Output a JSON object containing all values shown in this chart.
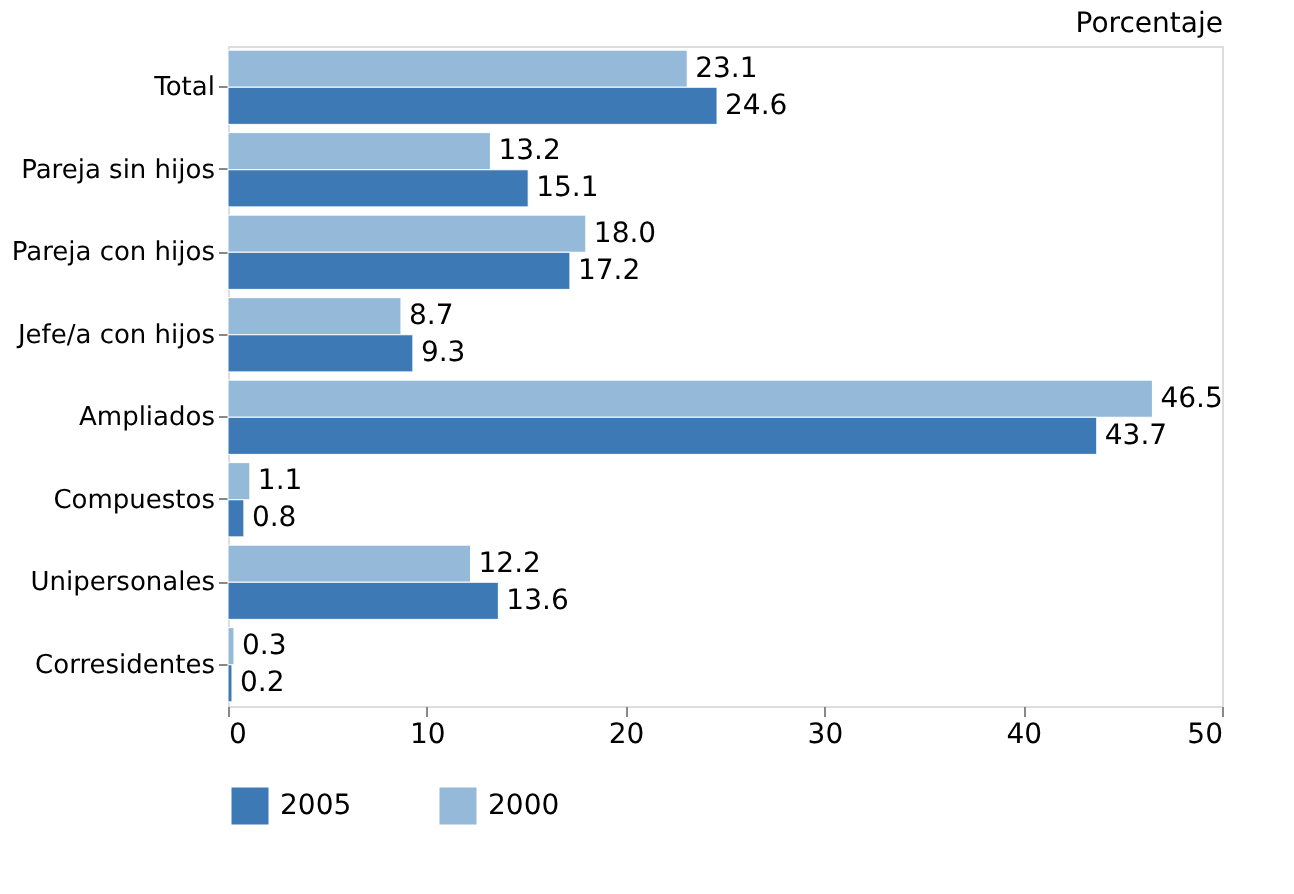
{
  "chart_data": {
    "type": "bar",
    "orientation": "horizontal",
    "xlabel": "Porcentaje",
    "categories": [
      "Total",
      "Pareja sin hijos",
      "Pareja con hijos",
      "Jefe/a con hijos",
      "Ampliados",
      "Compuestos",
      "Unipersonales",
      "Corresidentes"
    ],
    "series": [
      {
        "name": "2000",
        "color": "#95b9d8",
        "values": [
          23.1,
          13.2,
          18.0,
          8.7,
          46.5,
          1.1,
          12.2,
          0.3
        ],
        "value_labels": [
          "23.1",
          "13.2",
          "18.0",
          "8.7",
          "46.5",
          "1.1",
          "12.2",
          "0.3"
        ]
      },
      {
        "name": "2005",
        "color": "#3d7ab5",
        "values": [
          24.6,
          15.1,
          17.2,
          9.3,
          43.7,
          0.8,
          13.6,
          0.2
        ],
        "value_labels": [
          "24.6",
          "15.1",
          "17.2",
          "9.3",
          "43.7",
          "0.8",
          "13.6",
          "0.2"
        ]
      }
    ],
    "xlim": [
      0,
      50
    ],
    "xticks": [
      0,
      10,
      20,
      30,
      40,
      50
    ],
    "grid": false,
    "legend": "bottom"
  }
}
